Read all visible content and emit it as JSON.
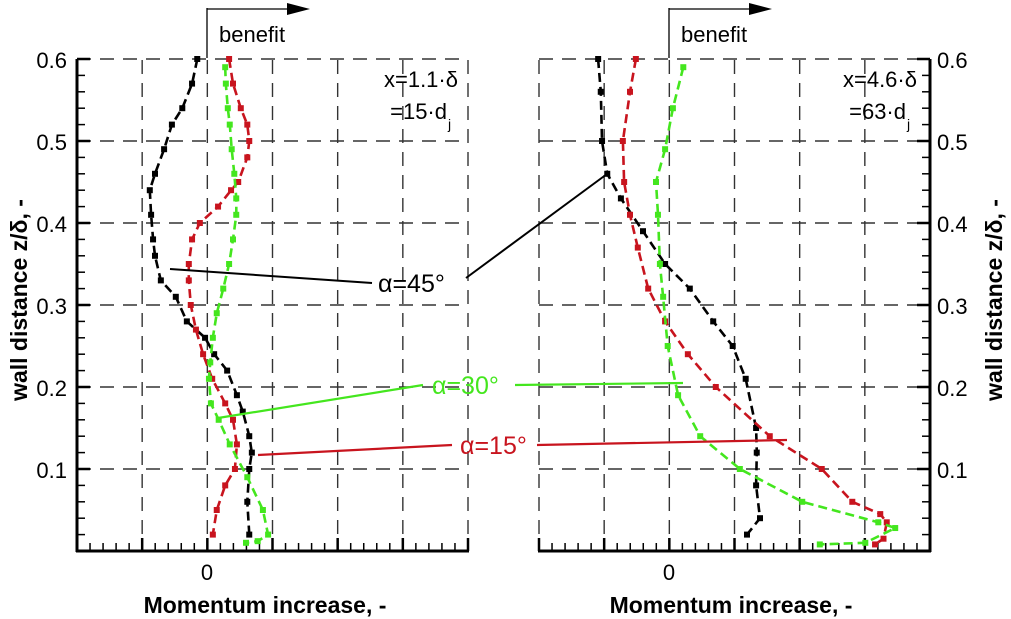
{
  "chart_data": [
    {
      "type": "line",
      "panel": "left",
      "title": "",
      "xlabel": "Momentum increase,  -",
      "ylabel": "wall distance z/δ,  -",
      "x_ticks": [
        "0"
      ],
      "x_units_note": "x values in grid units relative to zero line (arbitrary scale, ticks unlabeled except 0)",
      "xlim": [
        -2,
        4
      ],
      "ylim": [
        0,
        0.6
      ],
      "y_ticks": [
        0.1,
        0.2,
        0.3,
        0.4,
        0.5,
        0.6
      ],
      "grid": true,
      "annotation": [
        "x=1.1·δ",
        "=15·d",
        "j"
      ],
      "benefit_arrow": "benefit",
      "series": [
        {
          "name": "α=45°",
          "color": "#000000",
          "x": [
            -0.15,
            -0.23,
            -0.38,
            -0.54,
            -0.66,
            -0.8,
            -0.88,
            -0.86,
            -0.83,
            -0.8,
            -0.71,
            -0.48,
            -0.31,
            -0.03,
            0.11,
            0.31,
            0.46,
            0.55,
            0.65,
            0.69,
            0.65,
            0.62,
            0.65
          ],
          "y": [
            0.6,
            0.57,
            0.54,
            0.52,
            0.49,
            0.46,
            0.44,
            0.41,
            0.38,
            0.36,
            0.33,
            0.31,
            0.28,
            0.26,
            0.24,
            0.22,
            0.19,
            0.17,
            0.14,
            0.12,
            0.1,
            0.06,
            0.02
          ]
        },
        {
          "name": "α=15°",
          "color": "#c8141e",
          "x": [
            0.34,
            0.4,
            0.52,
            0.62,
            0.65,
            0.62,
            0.48,
            0.37,
            0.17,
            -0.11,
            -0.23,
            -0.28,
            -0.28,
            -0.25,
            -0.17,
            -0.06,
            0.08,
            0.28,
            0.4,
            0.46,
            0.43,
            0.28,
            0.15,
            0.09
          ],
          "y": [
            0.6,
            0.57,
            0.54,
            0.52,
            0.5,
            0.48,
            0.45,
            0.44,
            0.42,
            0.4,
            0.38,
            0.35,
            0.33,
            0.3,
            0.27,
            0.24,
            0.21,
            0.18,
            0.16,
            0.13,
            0.1,
            0.08,
            0.05,
            0.02
          ]
        },
        {
          "name": "α=30°",
          "color": "#44e61e",
          "x": [
            0.28,
            0.29,
            0.32,
            0.35,
            0.38,
            0.42,
            0.45,
            0.45,
            0.4,
            0.34,
            0.25,
            0.15,
            0.09,
            0.05,
            0.03,
            0.06,
            0.18,
            0.35,
            0.62,
            0.86,
            0.94,
            0.78,
            0.6
          ],
          "y": [
            0.59,
            0.57,
            0.54,
            0.52,
            0.49,
            0.46,
            0.43,
            0.41,
            0.38,
            0.35,
            0.32,
            0.29,
            0.26,
            0.23,
            0.21,
            0.18,
            0.16,
            0.13,
            0.09,
            0.05,
            0.02,
            0.012,
            0.01
          ]
        }
      ]
    },
    {
      "type": "line",
      "panel": "right",
      "title": "",
      "xlabel": "Momentum increase,  -",
      "ylabel": "wall distance z/δ,  -",
      "x_ticks": [
        "0"
      ],
      "xlim": [
        -2,
        4
      ],
      "ylim": [
        0,
        0.6
      ],
      "y_ticks": [
        0.1,
        0.2,
        0.3,
        0.4,
        0.5,
        0.6
      ],
      "grid": true,
      "annotation": [
        "x=4.6·δ",
        "=63·d",
        "j"
      ],
      "benefit_arrow": "benefit",
      "series": [
        {
          "name": "α=45°",
          "color": "#000000",
          "x": [
            -1.09,
            -1.05,
            -1.03,
            -0.95,
            -0.74,
            -0.4,
            -0.06,
            0.32,
            0.68,
            0.98,
            1.18,
            1.34,
            1.35,
            1.34,
            1.4,
            1.2
          ],
          "y": [
            0.6,
            0.56,
            0.5,
            0.46,
            0.43,
            0.39,
            0.35,
            0.32,
            0.28,
            0.25,
            0.21,
            0.15,
            0.12,
            0.08,
            0.04,
            0.02
          ]
        },
        {
          "name": "α=15°",
          "color": "#c8141e",
          "x": [
            -0.51,
            -0.6,
            -0.71,
            -0.69,
            -0.6,
            -0.48,
            -0.32,
            -0.06,
            0.29,
            0.72,
            1.55,
            2.35,
            2.82,
            3.25,
            3.35,
            3.3,
            3.17
          ],
          "y": [
            0.6,
            0.56,
            0.5,
            0.45,
            0.41,
            0.37,
            0.32,
            0.28,
            0.24,
            0.2,
            0.14,
            0.1,
            0.06,
            0.045,
            0.035,
            0.015,
            0.008
          ]
        },
        {
          "name": "α=30°",
          "color": "#44e61e",
          "x": [
            0.22,
            0.06,
            -0.06,
            -0.2,
            -0.17,
            -0.14,
            -0.09,
            -0.02,
            0.14,
            0.48,
            1.09,
            2.05,
            3.22,
            3.48,
            3.02,
            2.32
          ],
          "y": [
            0.59,
            0.54,
            0.49,
            0.45,
            0.41,
            0.35,
            0.31,
            0.25,
            0.19,
            0.14,
            0.1,
            0.06,
            0.035,
            0.028,
            0.01,
            0.008
          ]
        }
      ]
    }
  ],
  "labels": {
    "benefit": "benefit",
    "xlabel": "Momentum increase,  -",
    "ylabel": "wall distance z/δ,  -",
    "zero": "0",
    "yticks": [
      "0.1",
      "0.2",
      "0.3",
      "0.4",
      "0.5",
      "0.6"
    ],
    "left_annot_line1": "x=1.1·δ",
    "left_annot_line2": "=15·d",
    "left_annot_sub": "j",
    "right_annot_line1": "x=4.6·δ",
    "right_annot_line2": "=63·d",
    "right_annot_sub": "j",
    "alpha45": "α=45°",
    "alpha30": "α=30°",
    "alpha15": "α=15°"
  },
  "colors": {
    "alpha45": "#000000",
    "alpha30": "#44e61e",
    "alpha15": "#c8141e",
    "grid": "#333333"
  }
}
